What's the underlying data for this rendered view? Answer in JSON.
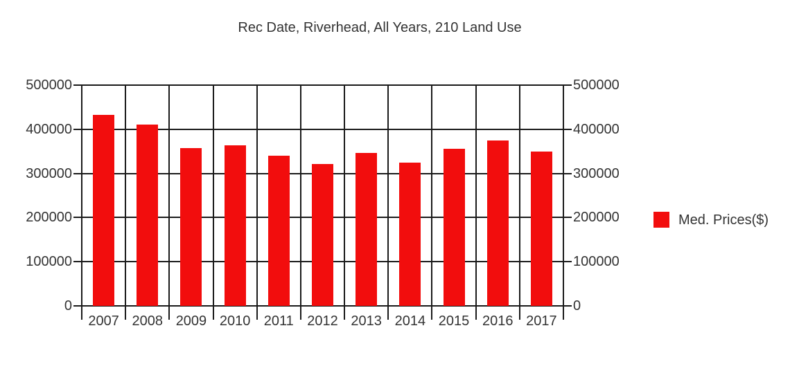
{
  "title": "Rec Date, Riverhead, All Years, 210 Land Use",
  "legend": {
    "label": "Med. Prices($)"
  },
  "colors": {
    "bar": "#f20d0d",
    "grid": "#1a1a1a",
    "text": "#333333",
    "background": "#ffffff"
  },
  "chart_data": {
    "type": "bar",
    "title": "Rec Date, Riverhead, All Years, 210 Land Use",
    "categories": [
      "2007",
      "2008",
      "2009",
      "2010",
      "2011",
      "2012",
      "2013",
      "2014",
      "2015",
      "2016",
      "2017"
    ],
    "series": [
      {
        "name": "Med. Prices($)",
        "color": "#f20d0d",
        "values": [
          433000,
          411000,
          357000,
          363000,
          340000,
          321000,
          346000,
          324000,
          356000,
          375000,
          350000
        ]
      }
    ],
    "xlabel": "",
    "ylabel": "",
    "ylim": [
      0,
      500000
    ],
    "ytick_interval": 100000,
    "ytick_labels": [
      "0",
      "100000",
      "200000",
      "300000",
      "400000",
      "500000"
    ],
    "grid": true,
    "dual_y_axis": true,
    "legend_position": "right"
  }
}
